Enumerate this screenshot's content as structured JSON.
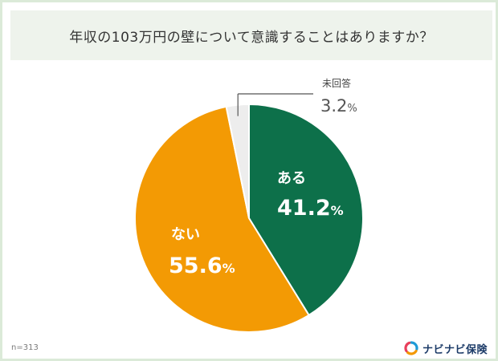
{
  "title": "年収の103万円の壁について意識することはありますか？",
  "sample": "n=313",
  "brand": {
    "name": "ナビナビ保険",
    "colors": [
      "#1e9bd7",
      "#f39800",
      "#e83f5c"
    ]
  },
  "chart_data": {
    "type": "pie",
    "title": "年収の103万円の壁について意識することはありますか？",
    "start": "12 o'clock, clockwise",
    "slices": [
      {
        "label": "ある",
        "value": 41.2,
        "value_text": "41.2",
        "unit": "%",
        "color": "#0d704a"
      },
      {
        "label": "ない",
        "value": 55.6,
        "value_text": "55.6",
        "unit": "%",
        "color": "#f39a04"
      },
      {
        "label": "未回答",
        "value": 3.2,
        "value_text": "3.2",
        "unit": "%",
        "color": "#ededed"
      }
    ]
  }
}
